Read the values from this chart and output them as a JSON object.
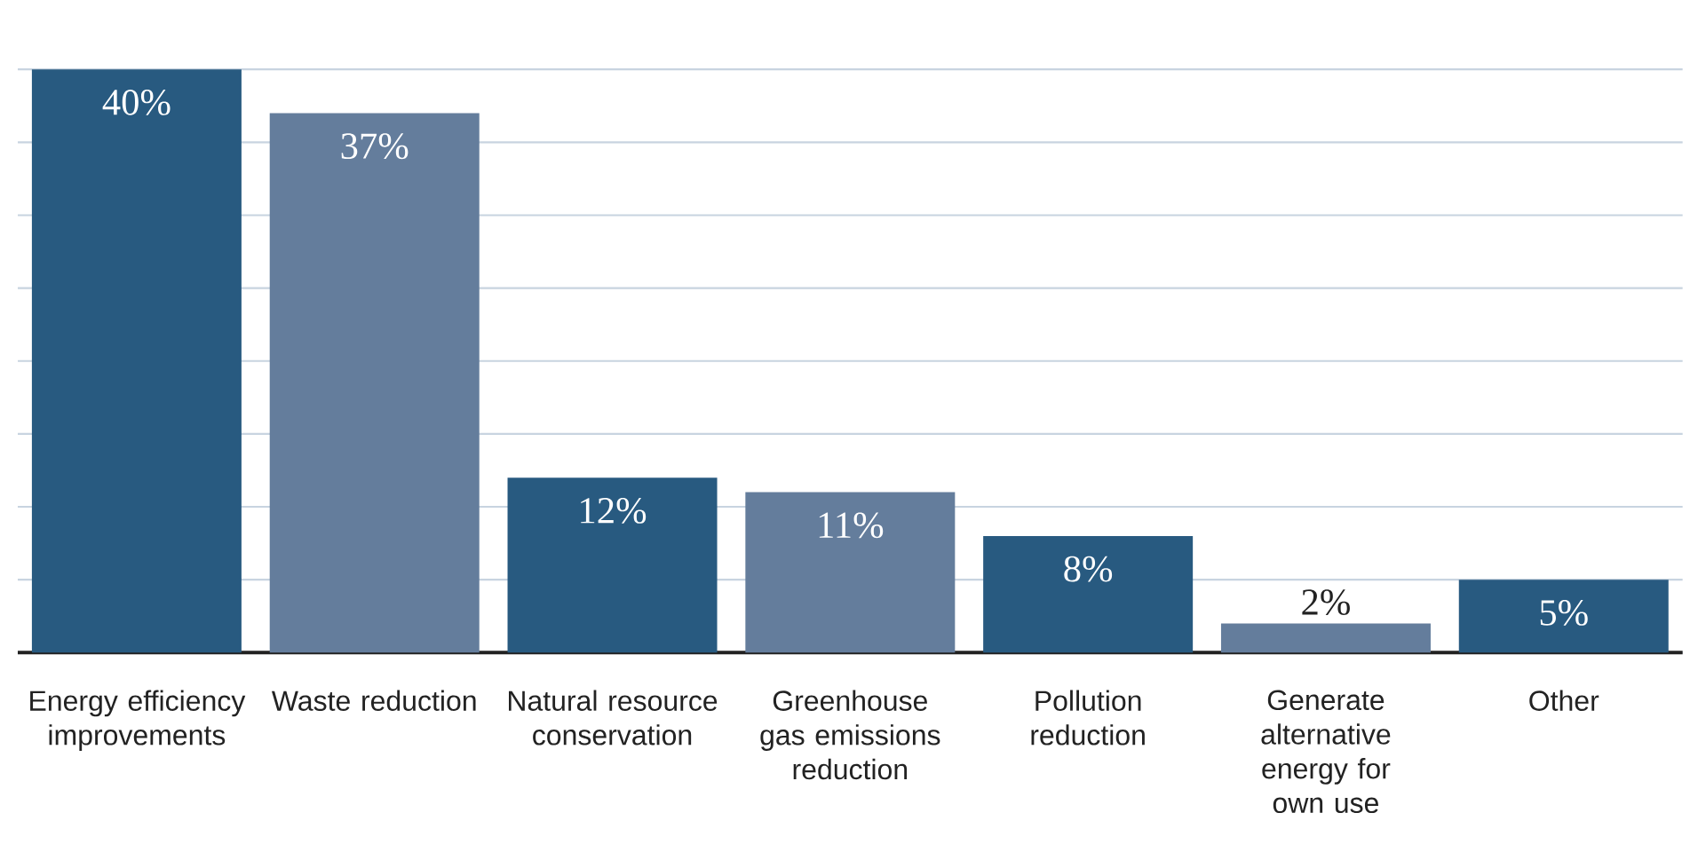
{
  "chart_data": {
    "type": "bar",
    "categories": [
      "Energy efficiency improvements",
      "Waste reduction",
      "Natural resource conservation",
      "Greenhouse gas emissions reduction",
      "Pollution reduction",
      "Generate alternative energy for own use",
      "Other"
    ],
    "values": [
      40,
      37,
      12,
      11,
      8,
      2,
      5
    ],
    "value_labels": [
      "40%",
      "37%",
      "12%",
      "11%",
      "8%",
      "2%",
      "5%"
    ],
    "colors": [
      "#285a80",
      "#647d9c",
      "#285a80",
      "#647d9c",
      "#285a80",
      "#647d9c",
      "#285a80"
    ],
    "grid": "y",
    "tick_labels": "x"
  }
}
